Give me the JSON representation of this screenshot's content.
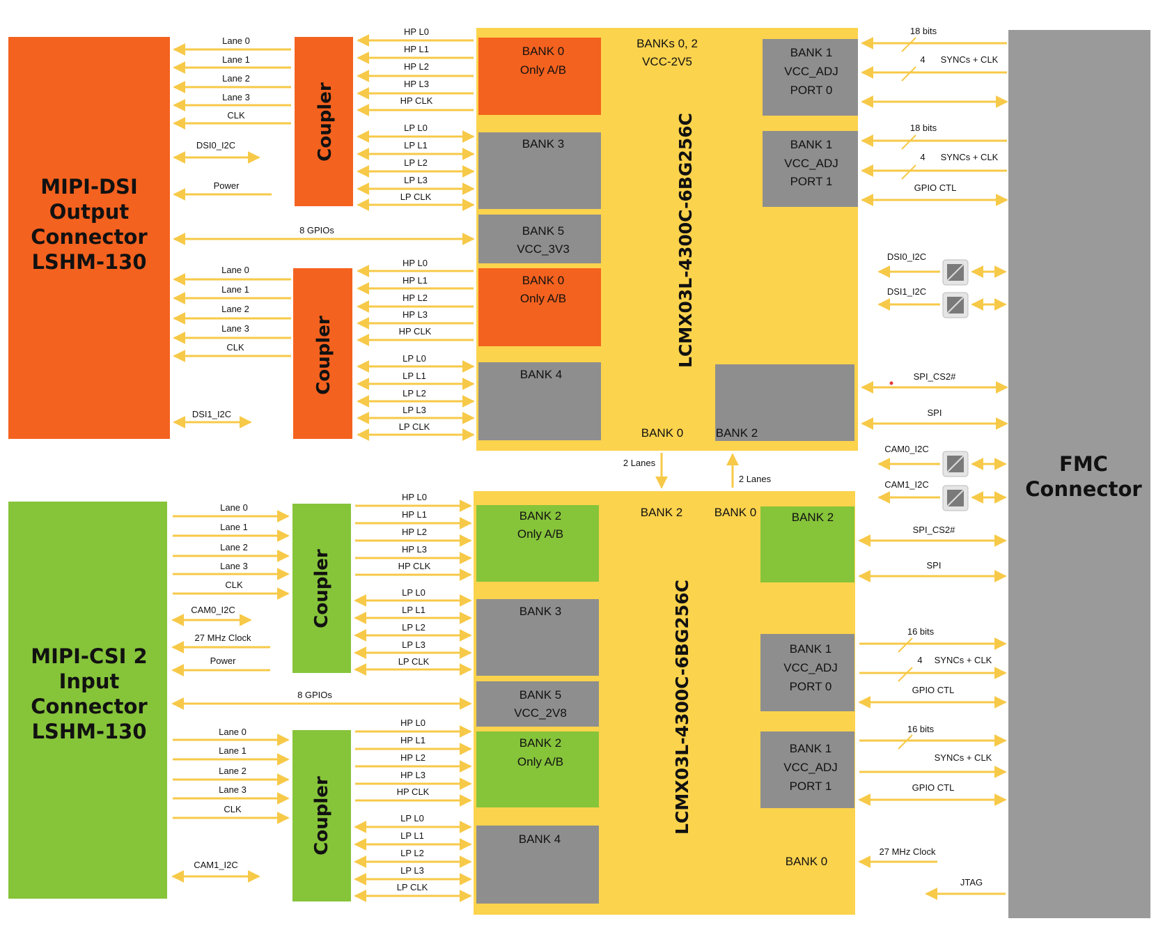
{
  "colors": {
    "dsi": "#f4621f",
    "csi": "#86c43a",
    "fpga": "#fcd34d",
    "bank_gray": "#8e8e8e",
    "fmc": "#9a9a9a",
    "arrow": "#f7c948"
  },
  "dsi_connector": {
    "lines": [
      "MIPI-DSI",
      "Output",
      "Connector",
      "LSHM-130"
    ]
  },
  "csi_connector": {
    "lines": [
      "MIPI-CSI 2",
      "Input",
      "Connector",
      "LSHM-130"
    ]
  },
  "fmc": {
    "lines": [
      "FMC",
      "Connector"
    ]
  },
  "coupler_label": "Coupler",
  "fpga_label": "LCMX03L-4300C-6BG256C",
  "lanes": [
    "Lane 0",
    "Lane 1",
    "Lane 2",
    "Lane 3",
    "CLK"
  ],
  "hp_signals": [
    "HP L0",
    "HP L1",
    "HP L2",
    "HP L3",
    "HP CLK"
  ],
  "lp_signals": [
    "LP L0",
    "LP L1",
    "LP L2",
    "LP L3",
    "LP CLK"
  ],
  "top": {
    "dsi0_i2c": "DSI0_I2C",
    "power": "Power",
    "gpios": "8 GPIOs",
    "dsi1_i2c": "DSI1_I2C",
    "banks_header": [
      "BANKs 0, 2",
      "VCC-2V5"
    ],
    "bank0a": [
      "BANK 0",
      "Only A/B"
    ],
    "bank3": [
      "BANK 3"
    ],
    "bank5": [
      "BANK 5",
      "VCC_3V3"
    ],
    "bank0b": [
      "BANK 0",
      "Only A/B"
    ],
    "bank4": [
      "BANK 4"
    ],
    "bank0_label": "BANK 0",
    "bank2_label": "BANK 2",
    "port0": [
      "BANK 1",
      "VCC_ADJ",
      "PORT 0"
    ],
    "port1": [
      "BANK 1",
      "VCC_ADJ",
      "PORT 1"
    ],
    "right": {
      "bits18a": "18 bits",
      "four_a": "4",
      "syncs_a": "SYNCs + CLK",
      "bits18b": "18 bits",
      "four_b": "4",
      "syncs_b": "SYNCs + CLK",
      "gpio_ctl": "GPIO CTL",
      "dsi0_i2c": "DSI0_I2C",
      "dsi1_i2c": "DSI1_I2C",
      "spi_cs2": "SPI_CS2#",
      "spi": "SPI"
    }
  },
  "middle": {
    "lanes_down": "2 Lanes",
    "lanes_up": "2 Lanes",
    "cam0_i2c": "CAM0_I2C",
    "cam1_i2c": "CAM1_I2C"
  },
  "bottom": {
    "cam0_i2c": "CAM0_I2C",
    "clock27": "27 MHz Clock",
    "power": "Power",
    "gpios": "8 GPIOs",
    "cam1_i2c": "CAM1_I2C",
    "bank2_header": "BANK 2",
    "bank0_header": "BANK 0",
    "bank2a": [
      "BANK 2",
      "Only A/B"
    ],
    "bank3": [
      "BANK 3"
    ],
    "bank5": [
      "BANK 5",
      "VCC_2V8"
    ],
    "bank2b": [
      "BANK 2",
      "Only A/B"
    ],
    "bank4": [
      "BANK 4"
    ],
    "bank2_right": [
      "BANK 2"
    ],
    "port0": [
      "BANK 1",
      "VCC_ADJ",
      "PORT 0"
    ],
    "port1": [
      "BANK 1",
      "VCC_ADJ",
      "PORT 1"
    ],
    "bank0_label": "BANK 0",
    "right": {
      "spi_cs2": "SPI_CS2#",
      "spi": "SPI",
      "bits16a": "16 bits",
      "four_a": "4",
      "syncs_a": "SYNCs + CLK",
      "gpio_ctl_a": "GPIO CTL",
      "bits16b": "16 bits",
      "syncs_b": "SYNCs + CLK",
      "gpio_ctl_b": "GPIO CTL",
      "clock27": "27 MHz Clock",
      "jtag": "JTAG"
    }
  }
}
